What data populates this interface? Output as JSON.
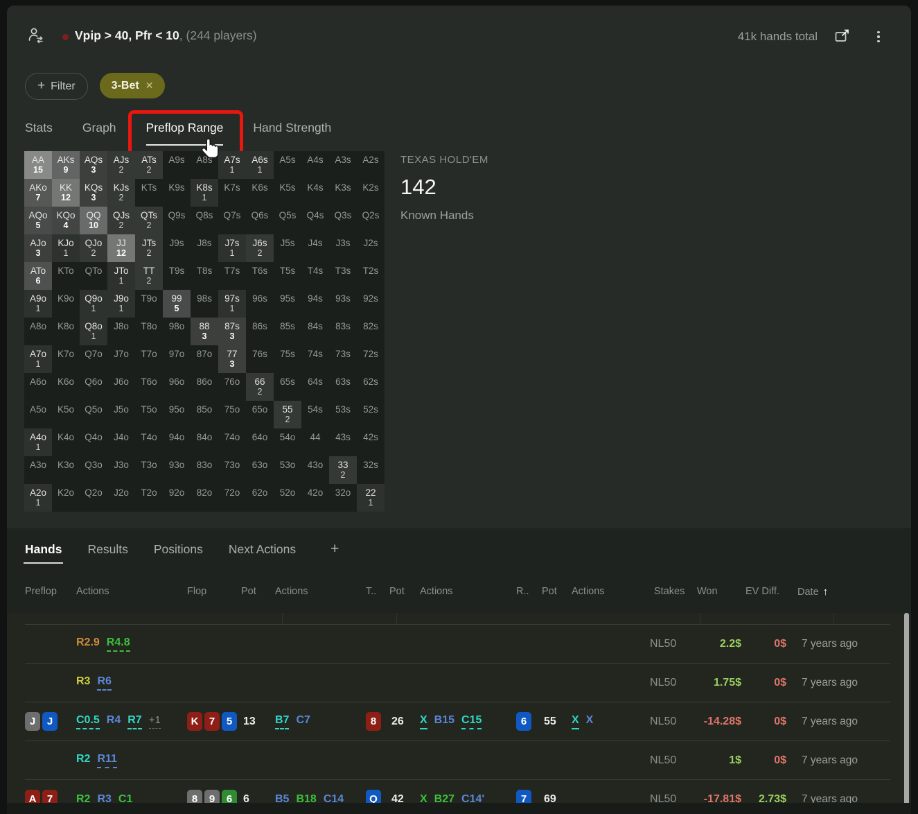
{
  "header": {
    "title": "Vpip > 40, Pfr < 10",
    "suffix": ", (244 players)",
    "hands_total": "41k hands total"
  },
  "icons": {
    "player": "player-swap-icon",
    "popout": "popout-icon",
    "menu": "kebab-menu-icon",
    "close": "✕",
    "plus": "+",
    "sort_asc": "↑"
  },
  "filter_bar": {
    "add_filter_label": "Filter",
    "chips": [
      {
        "label": "3-Bet"
      }
    ]
  },
  "tabs": {
    "items": [
      "Stats",
      "Graph",
      "Preflop Range",
      "Hand Strength"
    ],
    "active": "Preflop Range"
  },
  "summary": {
    "game": "TEXAS HOLD'EM",
    "value": "142",
    "label": "Known Hands"
  },
  "range_matrix": {
    "rows": [
      [
        [
          "AA",
          15
        ],
        [
          "AKs",
          9
        ],
        [
          "AQs",
          3
        ],
        [
          "AJs",
          2
        ],
        [
          "ATs",
          2
        ],
        [
          "A9s",
          0
        ],
        [
          "A8s",
          0
        ],
        [
          "A7s",
          1
        ],
        [
          "A6s",
          1
        ],
        [
          "A5s",
          0
        ],
        [
          "A4s",
          0
        ],
        [
          "A3s",
          0
        ],
        [
          "A2s",
          0
        ]
      ],
      [
        [
          "AKo",
          7
        ],
        [
          "KK",
          12
        ],
        [
          "KQs",
          3
        ],
        [
          "KJs",
          2
        ],
        [
          "KTs",
          0
        ],
        [
          "K9s",
          0
        ],
        [
          "K8s",
          1
        ],
        [
          "K7s",
          0
        ],
        [
          "K6s",
          0
        ],
        [
          "K5s",
          0
        ],
        [
          "K4s",
          0
        ],
        [
          "K3s",
          0
        ],
        [
          "K2s",
          0
        ]
      ],
      [
        [
          "AQo",
          5
        ],
        [
          "KQo",
          4
        ],
        [
          "QQ",
          10
        ],
        [
          "QJs",
          2
        ],
        [
          "QTs",
          2
        ],
        [
          "Q9s",
          0
        ],
        [
          "Q8s",
          0
        ],
        [
          "Q7s",
          0
        ],
        [
          "Q6s",
          0
        ],
        [
          "Q5s",
          0
        ],
        [
          "Q4s",
          0
        ],
        [
          "Q3s",
          0
        ],
        [
          "Q2s",
          0
        ]
      ],
      [
        [
          "AJo",
          3
        ],
        [
          "KJo",
          1
        ],
        [
          "QJo",
          2
        ],
        [
          "JJ",
          12
        ],
        [
          "JTs",
          2
        ],
        [
          "J9s",
          0
        ],
        [
          "J8s",
          0
        ],
        [
          "J7s",
          1
        ],
        [
          "J6s",
          2
        ],
        [
          "J5s",
          0
        ],
        [
          "J4s",
          0
        ],
        [
          "J3s",
          0
        ],
        [
          "J2s",
          0
        ]
      ],
      [
        [
          "ATo",
          6
        ],
        [
          "KTo",
          0
        ],
        [
          "QTo",
          0
        ],
        [
          "JTo",
          1
        ],
        [
          "TT",
          2
        ],
        [
          "T9s",
          0
        ],
        [
          "T8s",
          0
        ],
        [
          "T7s",
          0
        ],
        [
          "T6s",
          0
        ],
        [
          "T5s",
          0
        ],
        [
          "T4s",
          0
        ],
        [
          "T3s",
          0
        ],
        [
          "T2s",
          0
        ]
      ],
      [
        [
          "A9o",
          1
        ],
        [
          "K9o",
          0
        ],
        [
          "Q9o",
          1
        ],
        [
          "J9o",
          1
        ],
        [
          "T9o",
          0
        ],
        [
          "99",
          5
        ],
        [
          "98s",
          0
        ],
        [
          "97s",
          1
        ],
        [
          "96s",
          0
        ],
        [
          "95s",
          0
        ],
        [
          "94s",
          0
        ],
        [
          "93s",
          0
        ],
        [
          "92s",
          0
        ]
      ],
      [
        [
          "A8o",
          0
        ],
        [
          "K8o",
          0
        ],
        [
          "Q8o",
          1
        ],
        [
          "J8o",
          0
        ],
        [
          "T8o",
          0
        ],
        [
          "98o",
          0
        ],
        [
          "88",
          3
        ],
        [
          "87s",
          3
        ],
        [
          "86s",
          0
        ],
        [
          "85s",
          0
        ],
        [
          "84s",
          0
        ],
        [
          "83s",
          0
        ],
        [
          "82s",
          0
        ]
      ],
      [
        [
          "A7o",
          1
        ],
        [
          "K7o",
          0
        ],
        [
          "Q7o",
          0
        ],
        [
          "J7o",
          0
        ],
        [
          "T7o",
          0
        ],
        [
          "97o",
          0
        ],
        [
          "87o",
          0
        ],
        [
          "77",
          3
        ],
        [
          "76s",
          0
        ],
        [
          "75s",
          0
        ],
        [
          "74s",
          0
        ],
        [
          "73s",
          0
        ],
        [
          "72s",
          0
        ]
      ],
      [
        [
          "A6o",
          0
        ],
        [
          "K6o",
          0
        ],
        [
          "Q6o",
          0
        ],
        [
          "J6o",
          0
        ],
        [
          "T6o",
          0
        ],
        [
          "96o",
          0
        ],
        [
          "86o",
          0
        ],
        [
          "76o",
          0
        ],
        [
          "66",
          2
        ],
        [
          "65s",
          0
        ],
        [
          "64s",
          0
        ],
        [
          "63s",
          0
        ],
        [
          "62s",
          0
        ]
      ],
      [
        [
          "A5o",
          0
        ],
        [
          "K5o",
          0
        ],
        [
          "Q5o",
          0
        ],
        [
          "J5o",
          0
        ],
        [
          "T5o",
          0
        ],
        [
          "95o",
          0
        ],
        [
          "85o",
          0
        ],
        [
          "75o",
          0
        ],
        [
          "65o",
          0
        ],
        [
          "55",
          2
        ],
        [
          "54s",
          0
        ],
        [
          "53s",
          0
        ],
        [
          "52s",
          0
        ]
      ],
      [
        [
          "A4o",
          1
        ],
        [
          "K4o",
          0
        ],
        [
          "Q4o",
          0
        ],
        [
          "J4o",
          0
        ],
        [
          "T4o",
          0
        ],
        [
          "94o",
          0
        ],
        [
          "84o",
          0
        ],
        [
          "74o",
          0
        ],
        [
          "64o",
          0
        ],
        [
          "54o",
          0
        ],
        [
          "44",
          0
        ],
        [
          "43s",
          0
        ],
        [
          "42s",
          0
        ]
      ],
      [
        [
          "A3o",
          0
        ],
        [
          "K3o",
          0
        ],
        [
          "Q3o",
          0
        ],
        [
          "J3o",
          0
        ],
        [
          "T3o",
          0
        ],
        [
          "93o",
          0
        ],
        [
          "83o",
          0
        ],
        [
          "73o",
          0
        ],
        [
          "63o",
          0
        ],
        [
          "53o",
          0
        ],
        [
          "43o",
          0
        ],
        [
          "33",
          2
        ],
        [
          "32s",
          0
        ]
      ],
      [
        [
          "A2o",
          1
        ],
        [
          "K2o",
          0
        ],
        [
          "Q2o",
          0
        ],
        [
          "J2o",
          0
        ],
        [
          "T2o",
          0
        ],
        [
          "92o",
          0
        ],
        [
          "82o",
          0
        ],
        [
          "72o",
          0
        ],
        [
          "62o",
          0
        ],
        [
          "52o",
          0
        ],
        [
          "42o",
          0
        ],
        [
          "32o",
          0
        ],
        [
          "22",
          1
        ]
      ]
    ]
  },
  "bottom": {
    "tabs": [
      "Hands",
      "Results",
      "Positions",
      "Next Actions"
    ],
    "active_tab": "Hands",
    "table": {
      "headers": [
        "Preflop",
        "Actions",
        "Flop",
        "Pot",
        "Actions",
        "T..",
        "Pot",
        "Actions",
        "R..",
        "Pot",
        "Actions",
        "Stakes",
        "Won",
        "EV Diff.",
        "Date"
      ],
      "rows": [
        {
          "pf_actions": [
            {
              "t": "R2.9",
              "c": "orange"
            },
            {
              "t": "R4.8",
              "c": "green",
              "u": "dash"
            }
          ],
          "stakes": "NL50",
          "won": "2.2$",
          "won_pos": true,
          "ev": "0$",
          "ev_pos": false,
          "date": "7 years ago"
        },
        {
          "pf_actions": [
            {
              "t": "R3",
              "c": "yellow"
            },
            {
              "t": "R6",
              "c": "blue",
              "u": "dash"
            }
          ],
          "stakes": "NL50",
          "won": "1.75$",
          "won_pos": true,
          "ev": "0$",
          "ev_pos": false,
          "date": "7 years ago"
        },
        {
          "pf_cards": [
            [
              "J",
              "spade"
            ],
            [
              "J",
              "diamond"
            ]
          ],
          "pf_actions": [
            {
              "t": "C0.5",
              "c": "cyan",
              "u": "dash"
            },
            {
              "t": "R4",
              "c": "blue"
            },
            {
              "t": "R7",
              "c": "cyan",
              "u": "dash"
            },
            {
              "t": "+1",
              "c": "gray",
              "u": "dot"
            }
          ],
          "flop_cards": [
            [
              "K",
              "heart"
            ],
            [
              "7",
              "heart"
            ],
            [
              "5",
              "diamond"
            ]
          ],
          "flop_pot": "13",
          "flop_actions": [
            {
              "t": "B7",
              "c": "cyan",
              "u": "dash"
            },
            {
              "t": "C7",
              "c": "blue"
            }
          ],
          "turn_card": [
            "8",
            "heart"
          ],
          "turn_pot": "26",
          "turn_actions": [
            {
              "t": "X",
              "c": "cyan",
              "u": "dash"
            },
            {
              "t": "B15",
              "c": "blue"
            },
            {
              "t": "C15",
              "c": "cyan",
              "u": "dash"
            }
          ],
          "river_card": [
            "6",
            "diamond"
          ],
          "river_pot": "55",
          "river_actions": [
            {
              "t": "X",
              "c": "cyan",
              "u": "solid"
            },
            {
              "t": "X",
              "c": "blue"
            }
          ],
          "stakes": "NL50",
          "won": "-14.28$",
          "won_pos": false,
          "ev": "0$",
          "ev_pos": false,
          "date": "7 years ago"
        },
        {
          "pf_actions": [
            {
              "t": "R2",
              "c": "cyan"
            },
            {
              "t": "R11",
              "c": "blue",
              "u": "dash"
            }
          ],
          "stakes": "NL50",
          "won": "1$",
          "won_pos": true,
          "ev": "0$",
          "ev_pos": false,
          "date": "7 years ago"
        },
        {
          "pf_cards": [
            [
              "A",
              "heart"
            ],
            [
              "7",
              "heart"
            ]
          ],
          "pf_actions": [
            {
              "t": "R2",
              "c": "green"
            },
            {
              "t": "R3",
              "c": "blue"
            },
            {
              "t": "C1",
              "c": "green"
            }
          ],
          "flop_cards": [
            [
              "8",
              "spade"
            ],
            [
              "9",
              "spade"
            ],
            [
              "6",
              "club"
            ]
          ],
          "flop_pot": "6",
          "flop_actions": [
            {
              "t": "B5",
              "c": "blue"
            },
            {
              "t": "B18",
              "c": "green"
            },
            {
              "t": "C14",
              "c": "blue"
            }
          ],
          "turn_card": [
            "Q",
            "diamond"
          ],
          "turn_pot": "42",
          "turn_actions": [
            {
              "t": "X",
              "c": "green"
            },
            {
              "t": "B27",
              "c": "green"
            },
            {
              "t": "C14'",
              "c": "blue"
            }
          ],
          "river_card": [
            "7",
            "diamond"
          ],
          "river_pot": "69",
          "stakes": "NL50",
          "won": "-17.81$",
          "won_pos": false,
          "ev": "2.73$",
          "ev_pos": true,
          "date": "7 years ago"
        }
      ]
    }
  },
  "colors": {
    "annotation_red": "#e8170f",
    "chip_bg": "#6b691c",
    "action_cyan": "#2fd9c7",
    "action_blue": "#5b87d6",
    "action_green": "#3cc13c",
    "action_orange": "#cf8b3a",
    "action_yellow": "#cfcf3e",
    "won_pos": "#9ad15e",
    "won_neg": "#e0756a",
    "card_spade": "#6e6e6e",
    "card_heart": "#8d1f16",
    "card_diamond": "#1159c2",
    "card_club": "#2f8c33"
  }
}
